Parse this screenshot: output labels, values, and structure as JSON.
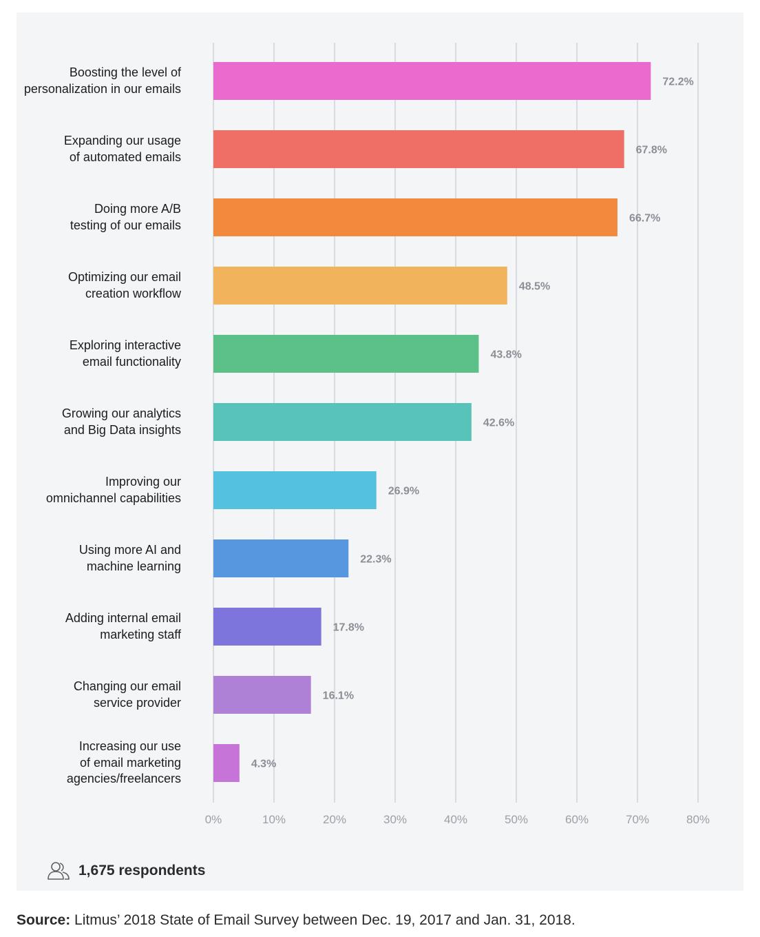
{
  "chart_data": {
    "type": "bar",
    "orientation": "horizontal",
    "categories": [
      [
        "Boosting the level of",
        "personalization in our emails"
      ],
      [
        "Expanding our usage",
        "of automated emails"
      ],
      [
        "Doing more A/B",
        "testing of our emails"
      ],
      [
        "Optimizing our email",
        "creation workflow"
      ],
      [
        "Exploring interactive",
        "email functionality"
      ],
      [
        "Growing our analytics",
        "and Big Data insights"
      ],
      [
        "Improving our",
        "omnichannel capabilities"
      ],
      [
        "Using more AI and",
        "machine learning"
      ],
      [
        "Adding internal email",
        "marketing staff"
      ],
      [
        "Changing our email",
        "service provider"
      ],
      [
        "Increasing our use",
        "of email marketing",
        "agencies/freelancers"
      ]
    ],
    "values": [
      72.2,
      67.8,
      66.7,
      48.5,
      43.8,
      42.6,
      26.9,
      22.3,
      17.8,
      16.1,
      4.3
    ],
    "value_labels": [
      "72.2%",
      "67.8%",
      "66.7%",
      "48.5%",
      "43.8%",
      "42.6%",
      "26.9%",
      "22.3%",
      "17.8%",
      "16.1%",
      "4.3%"
    ],
    "colors": [
      "#ea6acd",
      "#ef6e66",
      "#f28a3e",
      "#f1b35b",
      "#5cc089",
      "#58c3b8",
      "#55c1e1",
      "#5697e0",
      "#7d74dc",
      "#ae80d6",
      "#c774d9"
    ],
    "xlim": [
      0,
      80
    ],
    "xticks": [
      0,
      10,
      20,
      30,
      40,
      50,
      60,
      70,
      80
    ],
    "xtick_labels": [
      "0%",
      "10%",
      "20%",
      "30%",
      "40%",
      "50%",
      "60%",
      "70%",
      "80%"
    ],
    "grid": "vertical",
    "gridline_color": "#d9dbdf",
    "axis_text_color": "#9aa0a6",
    "value_label_color": "#8a8f96"
  },
  "footer": {
    "respondents_icon": "users-icon",
    "respondents": "1,675 respondents",
    "source_label": "Source:",
    "source_text": " Litmus’ 2018 State of Email Survey between Dec. 19, 2017 and Jan. 31, 2018."
  }
}
